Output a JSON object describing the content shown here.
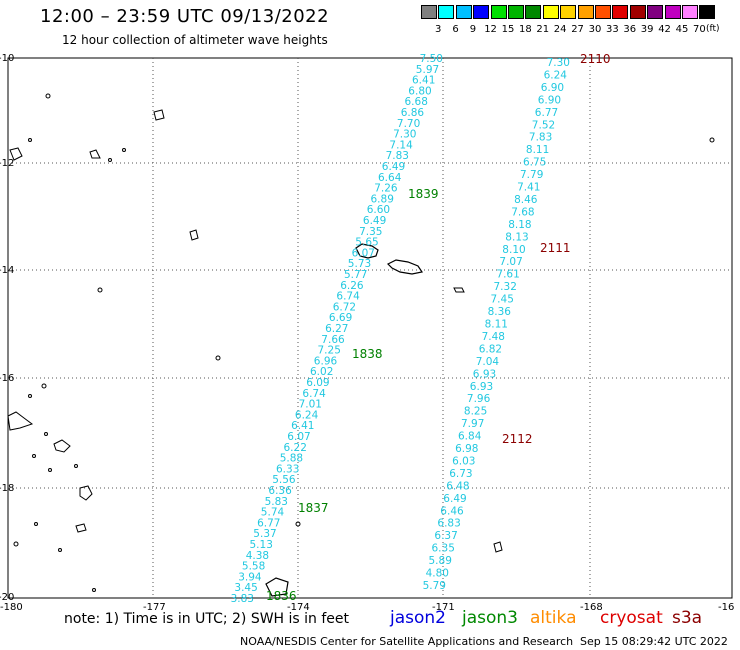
{
  "title": "12:00 – 23:59 UTC 09/13/2022",
  "subtitle": "12 hour collection of altimeter wave heights",
  "legend": {
    "unit": "(ft)",
    "ticks": [
      "3",
      "6",
      "9",
      "12",
      "15",
      "18",
      "21",
      "24",
      "27",
      "30",
      "33",
      "36",
      "39",
      "42",
      "45",
      "70"
    ],
    "colors": [
      "#808080",
      "#00ffff",
      "#00c0ff",
      "#0000ff",
      "#00e000",
      "#00b400",
      "#008800",
      "#ffff00",
      "#ffd200",
      "#ffa000",
      "#ff5000",
      "#e00000",
      "#a00000",
      "#800080",
      "#c000c0",
      "#ff80ff",
      "#000000"
    ]
  },
  "axes": {
    "lat_labels": [
      "-10",
      "-12",
      "-14",
      "-16",
      "-18",
      "-20"
    ],
    "lon_labels": [
      "-180",
      "-177",
      "-174",
      "-171",
      "-168",
      "-16"
    ]
  },
  "colors": {
    "cyan": "#22c8e0",
    "green": "#008000",
    "darkred": "#8b0000"
  },
  "passes": [
    {
      "id": "1839",
      "color": "cyan",
      "labels": [
        "7.50",
        "5.97",
        "6.41",
        "6.80",
        "6.68",
        "6.86",
        "7.70",
        "7.30",
        "7.14",
        "7.83",
        "6.49",
        "6.64",
        "7.26",
        "6.89",
        "6.60",
        "6.49",
        "7.35",
        "5.65",
        "6.07",
        "5.73",
        "5.77",
        "6.26",
        "6.74",
        "6.72",
        "6.69",
        "6.27",
        "7.66",
        "7.25",
        "6.96",
        "6.02",
        "6.09",
        "6.74",
        "7.01",
        "6.24",
        "6.41",
        "6.07",
        "6.22",
        "5.88",
        "6.33",
        "5.56",
        "6.36",
        "5.83",
        "5.74",
        "6.77",
        "5.37",
        "5.13",
        "4.38",
        "5.58",
        "3.94",
        "3.45",
        "3.83"
      ],
      "times": [
        {
          "text": "1839",
          "color": "green"
        },
        {
          "text": "1838",
          "color": "green"
        },
        {
          "text": "1837",
          "color": "green"
        },
        {
          "text": "1836",
          "color": "green"
        }
      ]
    },
    {
      "id": "2110",
      "color": "cyan",
      "labels": [
        "7.30",
        "6.24",
        "6.90",
        "6.90",
        "6.77",
        "7.52",
        "7.83",
        "8.11",
        "6.75",
        "7.79",
        "7.41",
        "8.46",
        "7.68",
        "8.18",
        "8.13",
        "8.10",
        "7.07",
        "7.61",
        "7.32",
        "7.45",
        "8.36",
        "8.11",
        "7.48",
        "6.82",
        "7.04",
        "6.93",
        "6.93",
        "7.96",
        "8.25",
        "7.97",
        "6.84",
        "6.98",
        "6.03",
        "6.73",
        "6.48",
        "6.49",
        "6.46",
        "6.83",
        "6.37",
        "6.35",
        "5.89",
        "4.80",
        "5.79"
      ],
      "times": [
        {
          "text": "2110",
          "color": "darkred"
        },
        {
          "text": "2111",
          "color": "darkred"
        },
        {
          "text": "2112",
          "color": "darkred"
        }
      ]
    }
  ],
  "note": "note: 1) Time is in UTC; 2) SWH is in feet",
  "satellites": [
    {
      "name": "jason2",
      "color": "#0000dd"
    },
    {
      "name": "jason3",
      "color": "#008800"
    },
    {
      "name": "altika",
      "color": "#ff8c00"
    },
    {
      "name": "cryosat",
      "color": "#dd0000"
    },
    {
      "name": "s3a",
      "color": "#8b0000"
    }
  ],
  "credit": "NOAA/NESDIS Center for Satellite Applications and Research",
  "timestamp": "Sep 15 08:29:42 UTC 2022"
}
